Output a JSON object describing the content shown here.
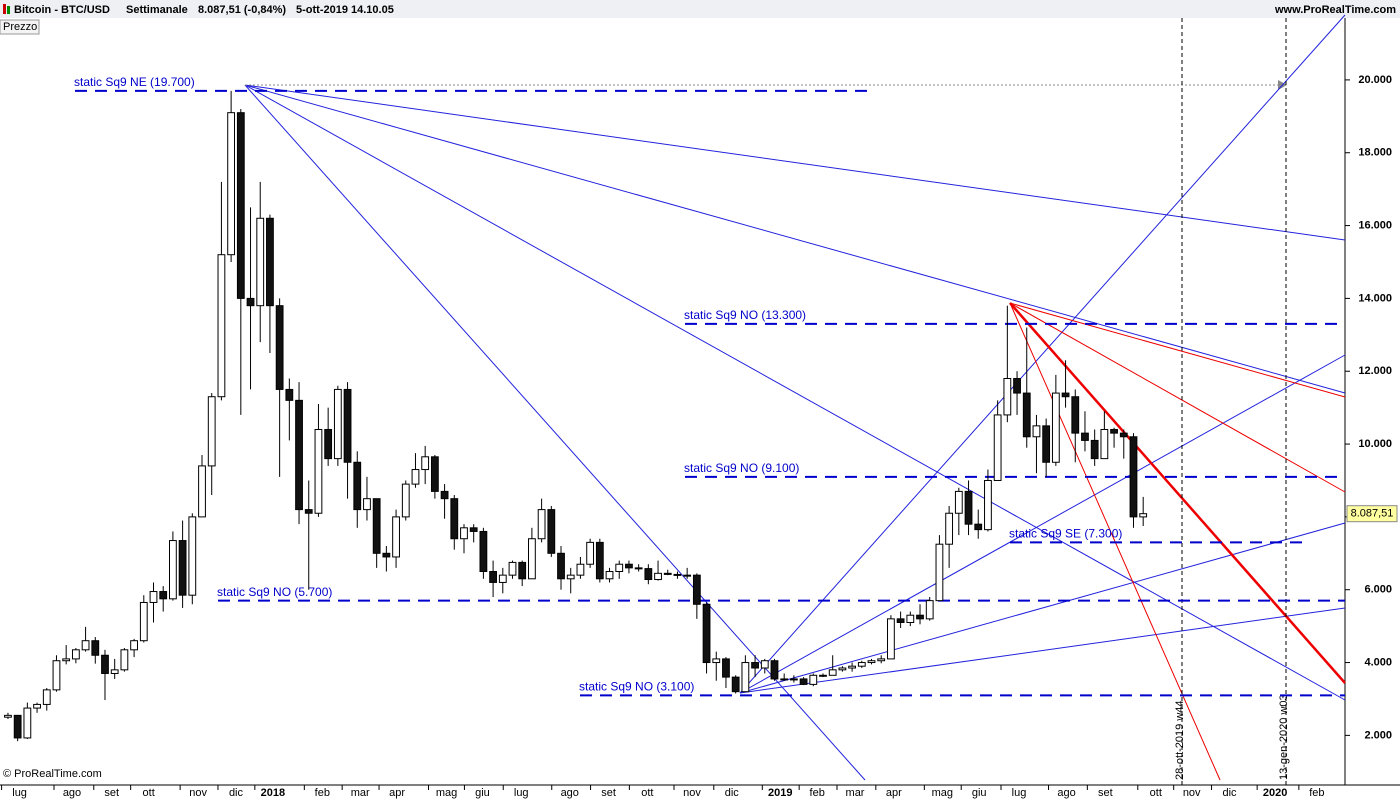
{
  "chart_data": {
    "type": "candlestick",
    "title": "Bitcoin - BTC/USD",
    "timeframe": "Settimanale",
    "quote": "8.087,51 (-0,84%)",
    "timestamp": "5-ott-2019 14.10.05",
    "site": "www.ProRealTime.com",
    "panel_label": "Prezzo",
    "copyright": "© ProRealTime.com",
    "open": [
      2500,
      2550,
      1930,
      2750,
      2850,
      3250,
      4050,
      4100,
      4350,
      4600,
      4200,
      3700,
      3800,
      4350,
      4600,
      5650,
      5950,
      5750,
      7350,
      5850,
      8000,
      9400,
      11300,
      15200,
      19100,
      14000,
      13800,
      16200,
      13800,
      11500,
      11200,
      8200,
      8100,
      10400,
      9600,
      11500,
      9500,
      8200,
      8500,
      7000,
      6900,
      8000,
      8900,
      9300,
      9650,
      8700,
      8500,
      7400,
      7700,
      7600,
      6500,
      6200,
      6400,
      6750,
      6300,
      7400,
      8200,
      7000,
      6300,
      6400,
      6700,
      7300,
      6300,
      6500,
      6700,
      6600,
      6580,
      6280,
      6450,
      6420,
      6400,
      6400,
      5600,
      4000,
      4100,
      3600,
      3200,
      4000,
      3850,
      4050,
      3550,
      3550,
      3550,
      3400,
      3650,
      3650,
      3800,
      3850,
      3900,
      4000,
      4050,
      4100,
      5200,
      5100,
      5300,
      5200,
      5700,
      7250,
      8100,
      8700,
      7800,
      7650,
      9000,
      10800,
      11800,
      11400,
      10200,
      10500,
      9500,
      11400,
      11300,
      10300,
      10100,
      9600,
      10400,
      10300,
      10200,
      8000
    ],
    "high": [
      2620,
      2560,
      2900,
      2900,
      3300,
      4200,
      4480,
      4400,
      4980,
      4700,
      4350,
      4100,
      4400,
      4650,
      5850,
      6200,
      6100,
      7600,
      7900,
      8100,
      9700,
      11400,
      17200,
      19700,
      19200,
      16500,
      17200,
      16300,
      14000,
      11800,
      11700,
      9000,
      11100,
      11000,
      11600,
      11700,
      9800,
      9100,
      8500,
      7200,
      8200,
      9000,
      9750,
      9950,
      9700,
      8900,
      8600,
      7800,
      7800,
      7700,
      6800,
      6600,
      6800,
      6800,
      7700,
      8500,
      8300,
      7200,
      6600,
      6900,
      7400,
      7400,
      6600,
      6800,
      6800,
      6700,
      6700,
      6800,
      6550,
      6500,
      6600,
      6450,
      5650,
      4300,
      4150,
      3650,
      4200,
      4200,
      4100,
      4100,
      3700,
      3650,
      3600,
      3700,
      3700,
      4200,
      3900,
      4000,
      4050,
      4100,
      4200,
      5300,
      5400,
      5400,
      5600,
      5800,
      7500,
      8300,
      8800,
      9000,
      8200,
      9300,
      11200,
      13800,
      12000,
      13200,
      10800,
      10700,
      11900,
      12300,
      11500,
      10900,
      10400,
      10900,
      10450,
      10400,
      10300,
      8550
    ],
    "low": [
      2450,
      1840,
      1900,
      2620,
      2680,
      3200,
      3950,
      3980,
      4300,
      3970,
      2970,
      3550,
      3750,
      4150,
      4550,
      5100,
      5400,
      5700,
      5500,
      5600,
      8000,
      8600,
      11200,
      15000,
      10800,
      11500,
      12800,
      12500,
      9100,
      10100,
      7800,
      6000,
      8000,
      9400,
      9400,
      8500,
      7700,
      7900,
      6600,
      6500,
      6600,
      7900,
      8800,
      8900,
      8500,
      7950,
      7100,
      7000,
      7300,
      6300,
      5800,
      5900,
      6300,
      6100,
      6300,
      7300,
      6900,
      6000,
      5900,
      6300,
      6600,
      6200,
      6200,
      6300,
      6450,
      6500,
      6150,
      6250,
      6400,
      6300,
      6300,
      5200,
      3700,
      3500,
      3300,
      3150,
      3200,
      3600,
      3700,
      3500,
      3500,
      3450,
      3380,
      3350,
      3600,
      3650,
      3750,
      3750,
      3850,
      3950,
      3980,
      4100,
      4950,
      5000,
      5050,
      5150,
      5700,
      6600,
      7500,
      7500,
      7400,
      7600,
      9000,
      10600,
      10800,
      9900,
      9200,
      9100,
      9400,
      11000,
      9500,
      9800,
      9400,
      9600,
      9900,
      9600,
      7700,
      7750
    ],
    "close": [
      2550,
      1930,
      2750,
      2850,
      3250,
      4050,
      4100,
      4350,
      4600,
      4200,
      3700,
      3800,
      4350,
      4600,
      5650,
      5950,
      5750,
      7350,
      5850,
      8000,
      9400,
      11300,
      15200,
      19100,
      14000,
      13800,
      16200,
      13800,
      11500,
      11200,
      8200,
      8100,
      10400,
      9600,
      11500,
      9500,
      8200,
      8500,
      7000,
      6900,
      8000,
      8900,
      9300,
      9650,
      8700,
      8500,
      7400,
      7700,
      7600,
      6500,
      6200,
      6400,
      6750,
      6300,
      7400,
      8200,
      7000,
      6300,
      6400,
      6700,
      7300,
      6300,
      6500,
      6700,
      6600,
      6580,
      6280,
      6450,
      6420,
      6400,
      6400,
      5600,
      4000,
      4100,
      3600,
      3200,
      4000,
      3850,
      4050,
      3550,
      3550,
      3550,
      3400,
      3650,
      3650,
      3800,
      3850,
      3900,
      4000,
      4050,
      4100,
      5200,
      5100,
      5300,
      5200,
      5700,
      7250,
      8100,
      8700,
      7800,
      7650,
      9000,
      10800,
      11800,
      11400,
      10200,
      10500,
      9500,
      11400,
      11300,
      10300,
      10100,
      9600,
      10400,
      10300,
      10200,
      8000,
      8087.51
    ],
    "ylim": [
      500,
      21700
    ],
    "yticks": [
      {
        "value": 2000,
        "label": "2.000"
      },
      {
        "value": 4000,
        "label": "4.000"
      },
      {
        "value": 6000,
        "label": "6.000"
      },
      {
        "value": 8000,
        "label": "8.000"
      },
      {
        "value": 10000,
        "label": "10.000"
      },
      {
        "value": 12000,
        "label": "12.000"
      },
      {
        "value": 14000,
        "label": "14.000"
      },
      {
        "value": 16000,
        "label": "16.000"
      },
      {
        "value": 18000,
        "label": "18.000"
      },
      {
        "value": 20000,
        "label": "20.000"
      }
    ],
    "xlim": [
      -0.82,
      137.8
    ],
    "xticks": [
      {
        "value": 1.2,
        "label": "lug"
      },
      {
        "value": 6.6,
        "label": "ago"
      },
      {
        "value": 10.7,
        "label": "set"
      },
      {
        "value": 14.5,
        "label": "ott"
      },
      {
        "value": 19.6,
        "label": "nov"
      },
      {
        "value": 23.5,
        "label": "dic"
      },
      {
        "value": 27.3,
        "label": "2018"
      },
      {
        "value": 32.4,
        "label": "feb"
      },
      {
        "value": 36.3,
        "label": "mar"
      },
      {
        "value": 40.1,
        "label": "apr"
      },
      {
        "value": 45.2,
        "label": "mag"
      },
      {
        "value": 48.9,
        "label": "giu"
      },
      {
        "value": 52.9,
        "label": "lug"
      },
      {
        "value": 57.9,
        "label": "ago"
      },
      {
        "value": 61.9,
        "label": "set"
      },
      {
        "value": 65.9,
        "label": "ott"
      },
      {
        "value": 70.5,
        "label": "nov"
      },
      {
        "value": 74.6,
        "label": "dic"
      },
      {
        "value": 79.6,
        "label": "2019"
      },
      {
        "value": 83.4,
        "label": "feb"
      },
      {
        "value": 87.3,
        "label": "mar"
      },
      {
        "value": 91.3,
        "label": "apr"
      },
      {
        "value": 96.3,
        "label": "mag"
      },
      {
        "value": 100.1,
        "label": "giu"
      },
      {
        "value": 104.2,
        "label": "lug"
      },
      {
        "value": 109.1,
        "label": "ago"
      },
      {
        "value": 113.1,
        "label": "set"
      },
      {
        "value": 118.3,
        "label": "ott"
      },
      {
        "value": 122.0,
        "label": "nov"
      },
      {
        "value": 125.9,
        "label": "dic"
      },
      {
        "value": 130.6,
        "label": "2020"
      },
      {
        "value": 134.9,
        "label": "feb"
      }
    ],
    "levels": [
      {
        "value": 19700,
        "label": "static Sq9 NE (19.700)"
      },
      {
        "value": 13300,
        "label": "static Sq9 NO (13.300)"
      },
      {
        "value": 9100,
        "label": "static Sq9 NO (9.100)"
      },
      {
        "value": 7300,
        "label": "static Sq9 SE (7.300)"
      },
      {
        "value": 5700,
        "label": "static Sq9 NO (5.700)"
      },
      {
        "value": 3100,
        "label": "static Sq9 NO (3.100)"
      }
    ],
    "vlines": [
      {
        "label": "28-ott-2019 w44"
      },
      {
        "label": "13-gen-2020 w03"
      }
    ],
    "last_price": {
      "value": 8087.51,
      "label": "8.087,51"
    }
  }
}
